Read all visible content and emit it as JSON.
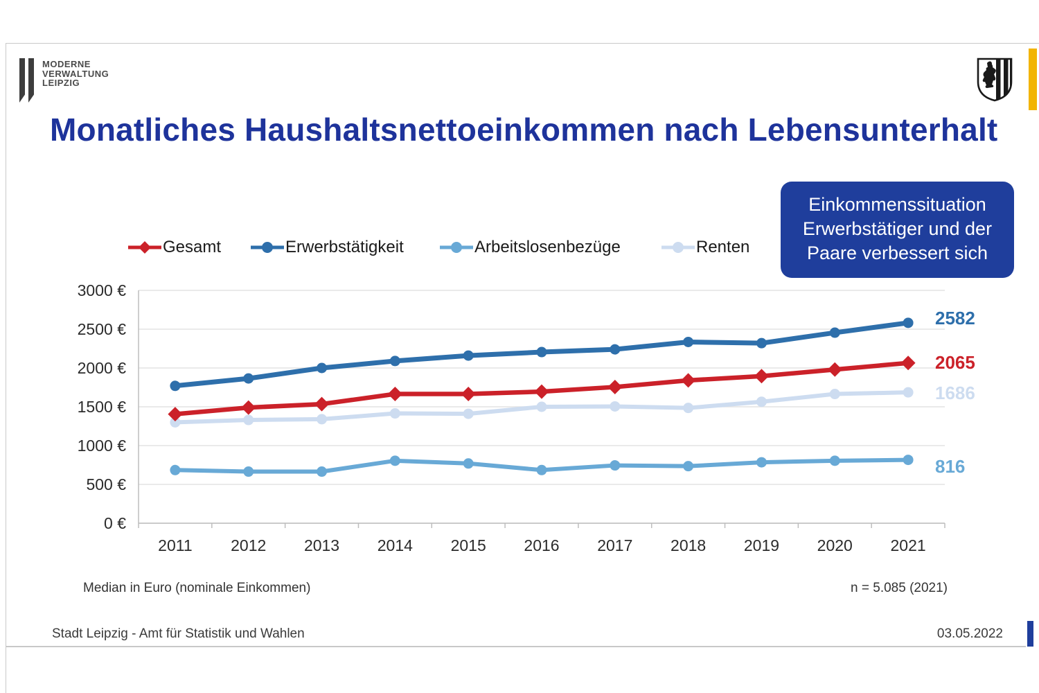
{
  "branding": {
    "logo_lines": [
      "MODERNE",
      "VERWALTUNG",
      "LEIPZIG"
    ]
  },
  "title": "Monatliches Haushaltsnettoeinkommen nach Lebensunterhalt",
  "callout": {
    "lines": [
      "Einkommenssituation",
      "Erwerbstätiger und der",
      "Paare verbessert sich"
    ],
    "bg_color": "#1f3e9c"
  },
  "colors": {
    "title_blue": "#1e339b",
    "accent_yellow": "#f2b403",
    "accent_blue": "#1f3e9c"
  },
  "footer": {
    "left": "Stadt Leipzig  -  Amt für Statistik und Wahlen",
    "right": "03.05.2022"
  },
  "chart_data": {
    "type": "line",
    "ylabel": "Median in Euro (nominale Einkommen)",
    "sample_note": "n = 5.085 (2021)",
    "ylim": [
      0,
      3000
    ],
    "y_ticks": [
      "0 €",
      "500 €",
      "1000 €",
      "1500 €",
      "2000 €",
      "2500 €",
      "3000 €"
    ],
    "grid": "horizontal",
    "legend_position": "top",
    "categories": [
      "2011",
      "2012",
      "2013",
      "2014",
      "2015",
      "2016",
      "2017",
      "2018",
      "2019",
      "2020",
      "2021"
    ],
    "series": [
      {
        "name": "Gesamt",
        "color": "#cb2129",
        "marker": "diamond",
        "end_label": "2065",
        "values": [
          1405,
          1490,
          1535,
          1665,
          1665,
          1695,
          1755,
          1840,
          1895,
          1980,
          2065
        ]
      },
      {
        "name": "Erwerbstätigkeit",
        "color": "#2e6fab",
        "marker": "circle",
        "end_label": "2582",
        "values": [
          1770,
          1865,
          2000,
          2090,
          2160,
          2205,
          2240,
          2335,
          2320,
          2455,
          2582
        ]
      },
      {
        "name": "Arbeitslosenbezüge",
        "color": "#68a9d6",
        "marker": "circle",
        "end_label": "816",
        "values": [
          685,
          665,
          665,
          805,
          770,
          685,
          745,
          735,
          785,
          805,
          816
        ]
      },
      {
        "name": "Renten",
        "color": "#cddcf0",
        "marker": "circle",
        "end_label": "1686",
        "values": [
          1300,
          1330,
          1340,
          1415,
          1410,
          1500,
          1505,
          1485,
          1565,
          1665,
          1686
        ]
      }
    ]
  }
}
